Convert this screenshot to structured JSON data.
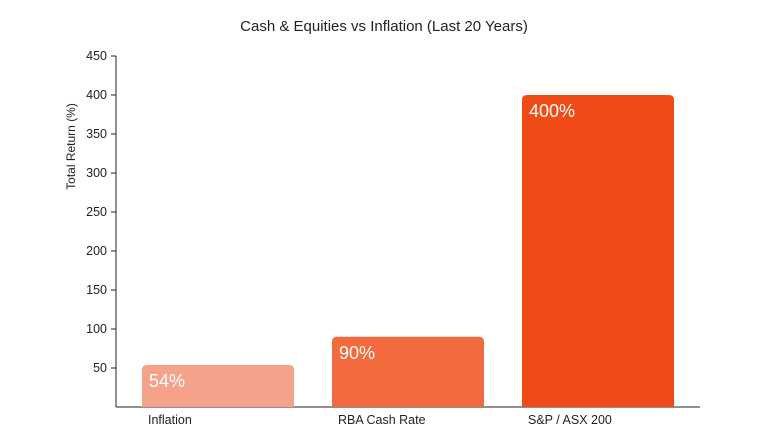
{
  "chart_data": {
    "type": "bar",
    "title": "Cash & Equities vs Inflation (Last 20 Years)",
    "xlabel": "",
    "ylabel": "Total Return (%)",
    "categories": [
      "Inflation",
      "RBA Cash Rate",
      "S&P / ASX 200"
    ],
    "values": [
      54,
      90,
      400
    ],
    "data_labels": [
      "54%",
      "90%",
      "400%"
    ],
    "colors": [
      "#f4a38a",
      "#f46a3f",
      "#f04b16"
    ],
    "ylim": [
      0,
      450
    ],
    "yticks": [
      50,
      100,
      150,
      200,
      250,
      300,
      350,
      400,
      450
    ],
    "grid": false,
    "legend": "none"
  }
}
